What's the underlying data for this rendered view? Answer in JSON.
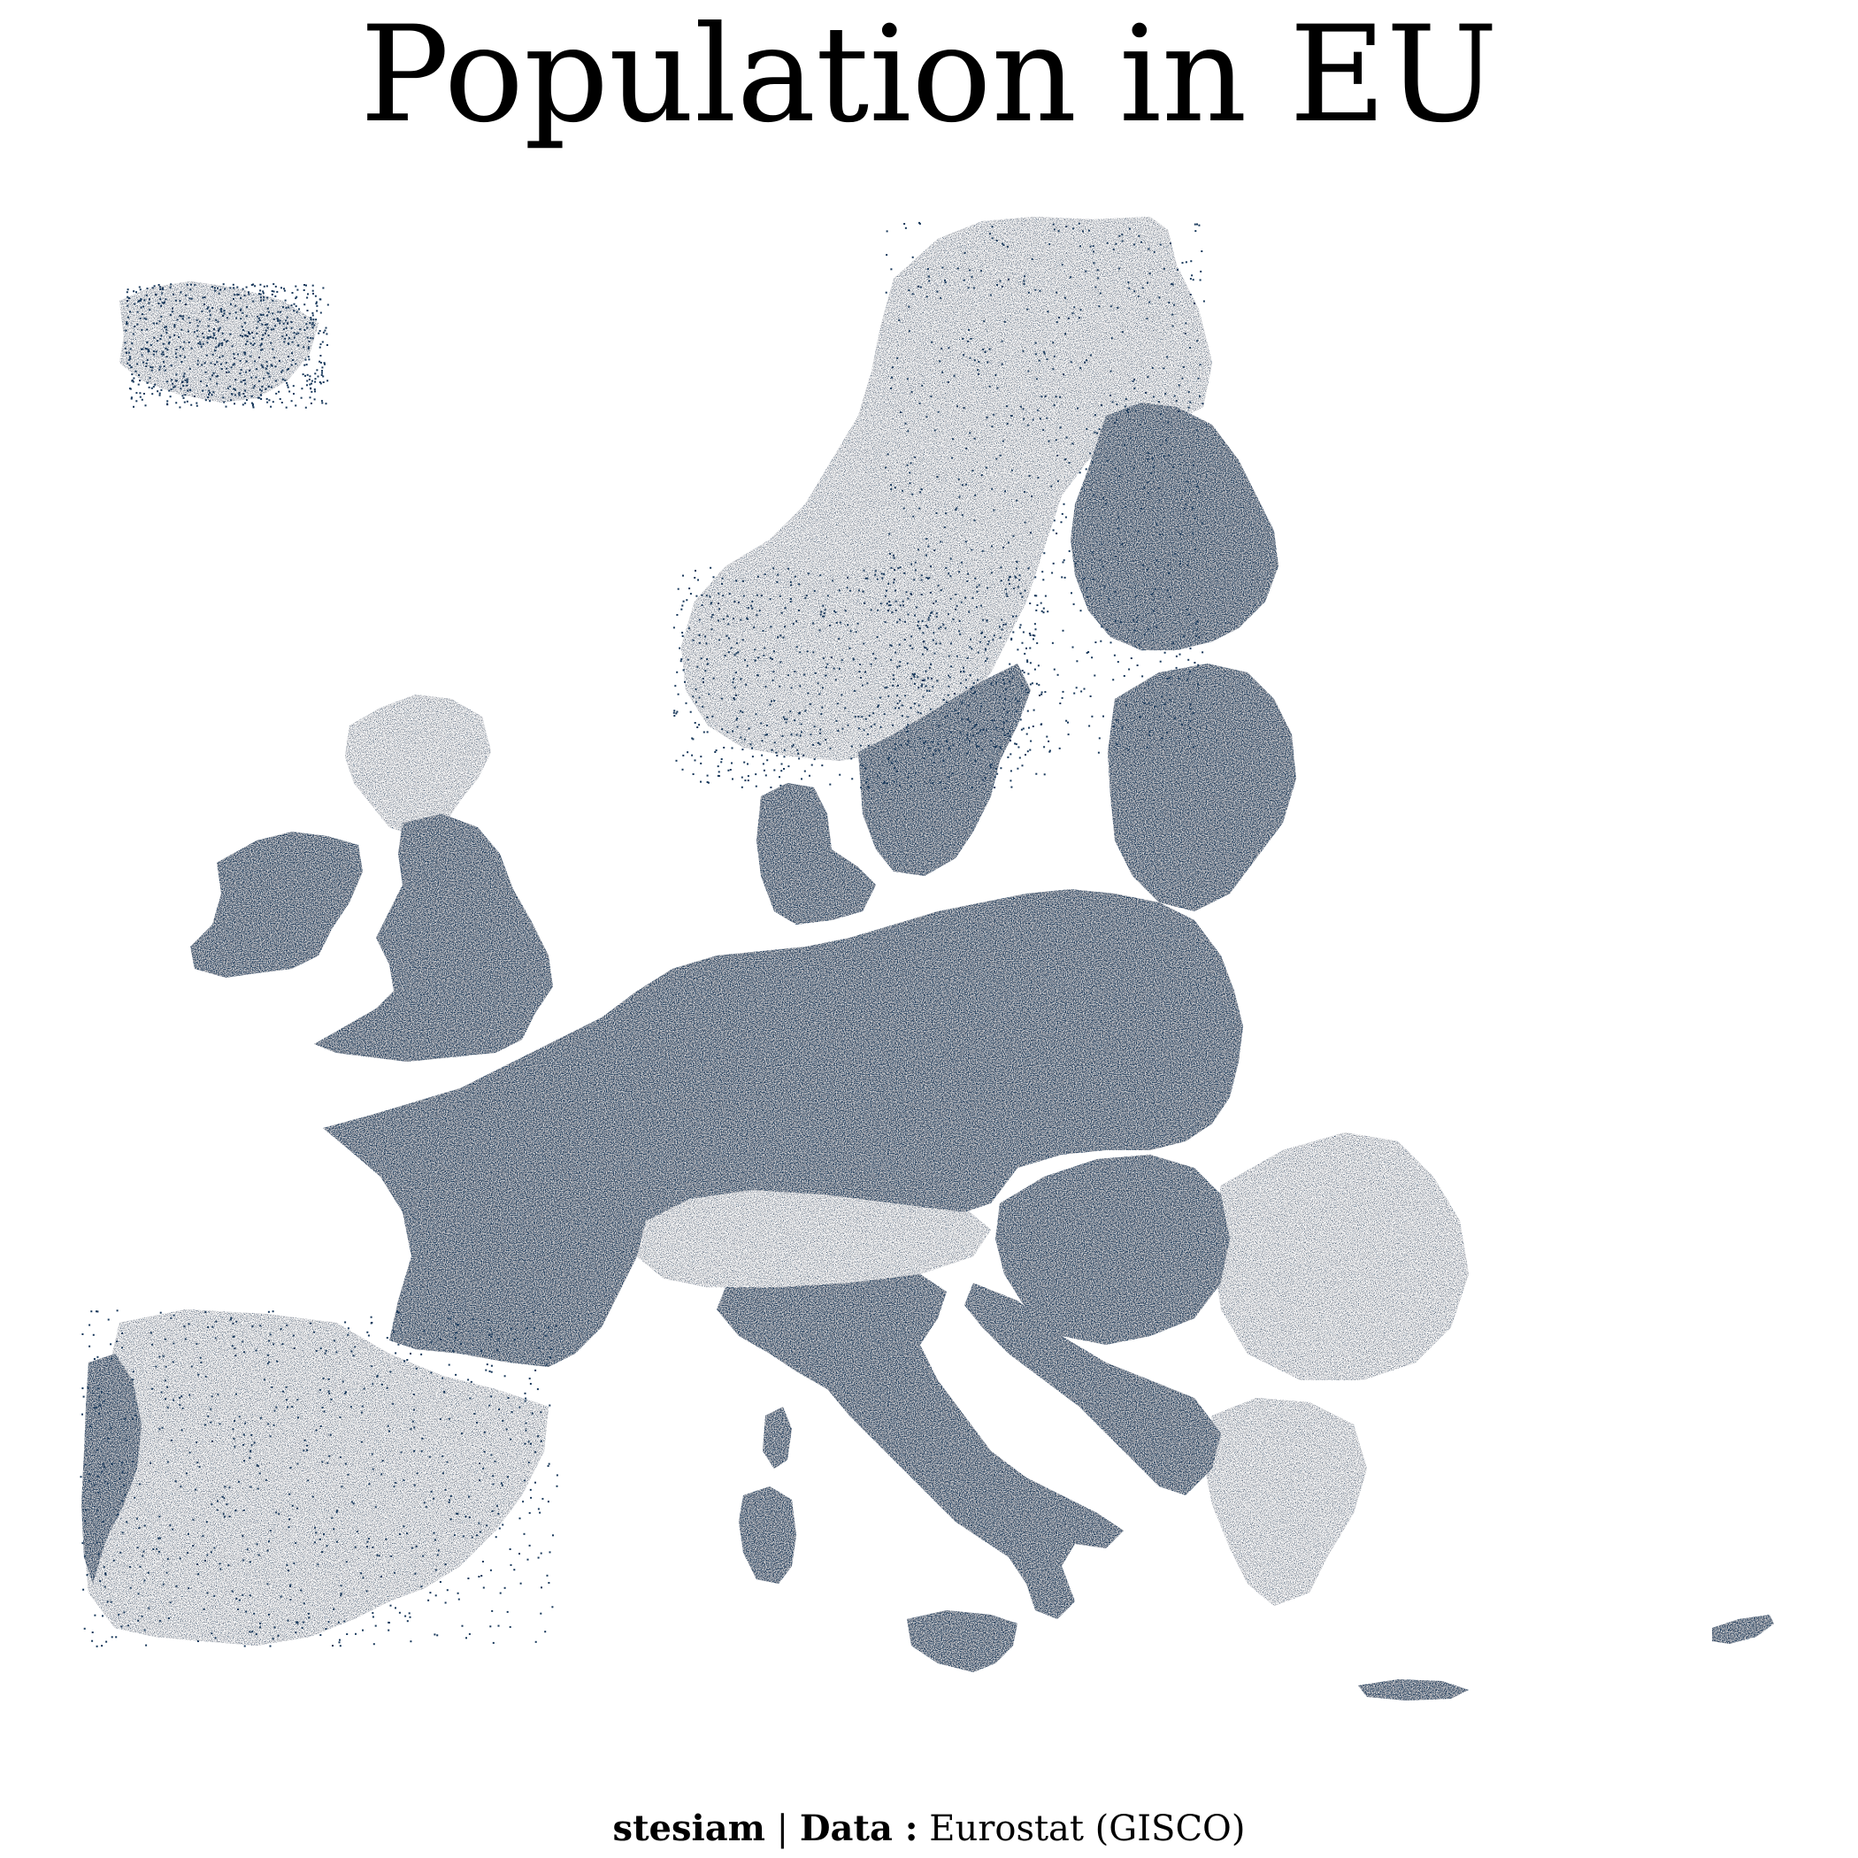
{
  "title": "Population in EU",
  "caption": {
    "author": "stesiam",
    "separator": " | ",
    "data_label": "Data :",
    "source": " Eurostat (GISCO)"
  },
  "map": {
    "fill_color": "#17375a",
    "background": "#ffffff",
    "regions": [
      "iceland",
      "ireland",
      "great-britain",
      "scandinavia",
      "finland",
      "baltics",
      "denmark",
      "france",
      "iberia",
      "central-europe",
      "alps",
      "italy",
      "balkans",
      "greece",
      "cyprus"
    ]
  }
}
